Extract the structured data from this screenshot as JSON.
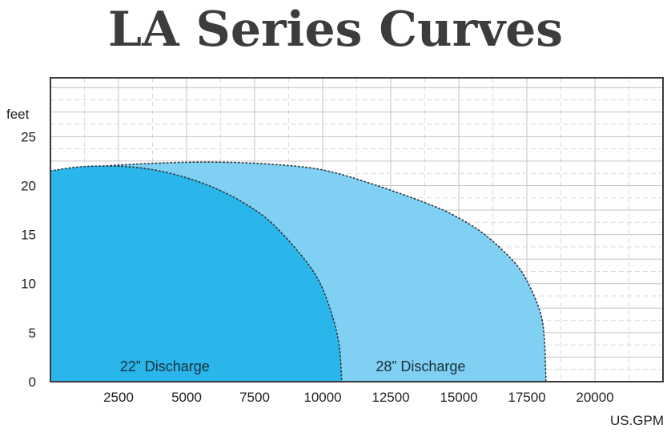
{
  "title": "LA Series Curves",
  "chart_data": {
    "type": "area",
    "title": "LA Series Curves",
    "xlabel": "US.GPM",
    "ylabel": "feet",
    "xlim": [
      0,
      22500
    ],
    "ylim": [
      0,
      31
    ],
    "x_ticks": [
      2500,
      5000,
      7500,
      10000,
      12500,
      15000,
      17500,
      20000
    ],
    "y_ticks": [
      0,
      5,
      10,
      15,
      20,
      25
    ],
    "grid": true,
    "series": [
      {
        "name": "28” Discharge",
        "color": "#7fd0f3",
        "points": [
          [
            0,
            21.5
          ],
          [
            2000,
            22.0
          ],
          [
            4000,
            22.3
          ],
          [
            6000,
            22.4
          ],
          [
            8000,
            22.2
          ],
          [
            10000,
            21.6
          ],
          [
            12000,
            20.0
          ],
          [
            14000,
            18.0
          ],
          [
            15000,
            16.7
          ],
          [
            16000,
            14.9
          ],
          [
            17000,
            12.3
          ],
          [
            17500,
            10.3
          ],
          [
            18000,
            7.0
          ],
          [
            18150,
            4.0
          ],
          [
            18200,
            0
          ]
        ]
      },
      {
        "name": "22” Discharge",
        "color": "#2ab6ea",
        "points": [
          [
            0,
            21.5
          ],
          [
            1000,
            21.9
          ],
          [
            2000,
            22.0
          ],
          [
            3000,
            21.9
          ],
          [
            4000,
            21.5
          ],
          [
            5000,
            20.8
          ],
          [
            6000,
            19.8
          ],
          [
            7000,
            18.4
          ],
          [
            8000,
            16.5
          ],
          [
            9000,
            13.6
          ],
          [
            9800,
            10.6
          ],
          [
            10300,
            7.2
          ],
          [
            10600,
            3.8
          ],
          [
            10700,
            0
          ]
        ]
      }
    ]
  }
}
